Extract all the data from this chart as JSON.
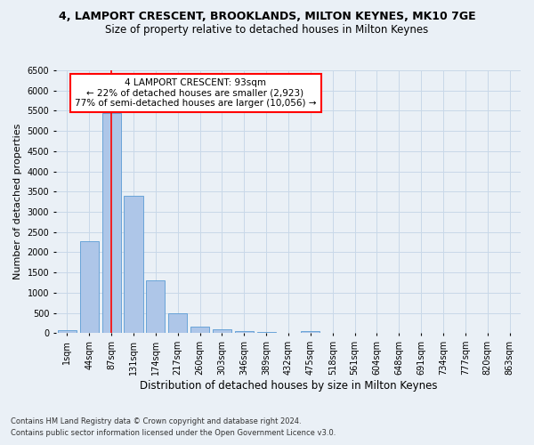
{
  "title": "4, LAMPORT CRESCENT, BROOKLANDS, MILTON KEYNES, MK10 7GE",
  "subtitle": "Size of property relative to detached houses in Milton Keynes",
  "xlabel": "Distribution of detached houses by size in Milton Keynes",
  "ylabel": "Number of detached properties",
  "footnote1": "Contains HM Land Registry data © Crown copyright and database right 2024.",
  "footnote2": "Contains public sector information licensed under the Open Government Licence v3.0.",
  "categories": [
    "1sqm",
    "44sqm",
    "87sqm",
    "131sqm",
    "174sqm",
    "217sqm",
    "260sqm",
    "303sqm",
    "346sqm",
    "389sqm",
    "432sqm",
    "475sqm",
    "518sqm",
    "561sqm",
    "604sqm",
    "648sqm",
    "691sqm",
    "734sqm",
    "777sqm",
    "820sqm",
    "863sqm"
  ],
  "values": [
    65,
    2270,
    5450,
    3390,
    1310,
    480,
    165,
    90,
    60,
    30,
    15,
    55,
    0,
    0,
    0,
    0,
    0,
    0,
    0,
    0,
    0
  ],
  "bar_color": "#aec6e8",
  "bar_edge_color": "#5a9bd4",
  "grid_color": "#c8d8e8",
  "vline_x": 2,
  "vline_color": "red",
  "annotation_title": "4 LAMPORT CRESCENT: 93sqm",
  "annotation_line1": "← 22% of detached houses are smaller (2,923)",
  "annotation_line2": "77% of semi-detached houses are larger (10,056) →",
  "annotation_box_color": "white",
  "annotation_box_edge_color": "red",
  "ylim": [
    0,
    6500
  ],
  "yticks": [
    0,
    500,
    1000,
    1500,
    2000,
    2500,
    3000,
    3500,
    4000,
    4500,
    5000,
    5500,
    6000,
    6500
  ],
  "background_color": "#eaf0f6",
  "plot_bg_color": "#eaf0f6",
  "title_fontsize": 9,
  "subtitle_fontsize": 8.5,
  "ylabel_fontsize": 8,
  "xlabel_fontsize": 8.5,
  "tick_fontsize": 7,
  "annotation_fontsize": 7.5,
  "footnote_fontsize": 6
}
